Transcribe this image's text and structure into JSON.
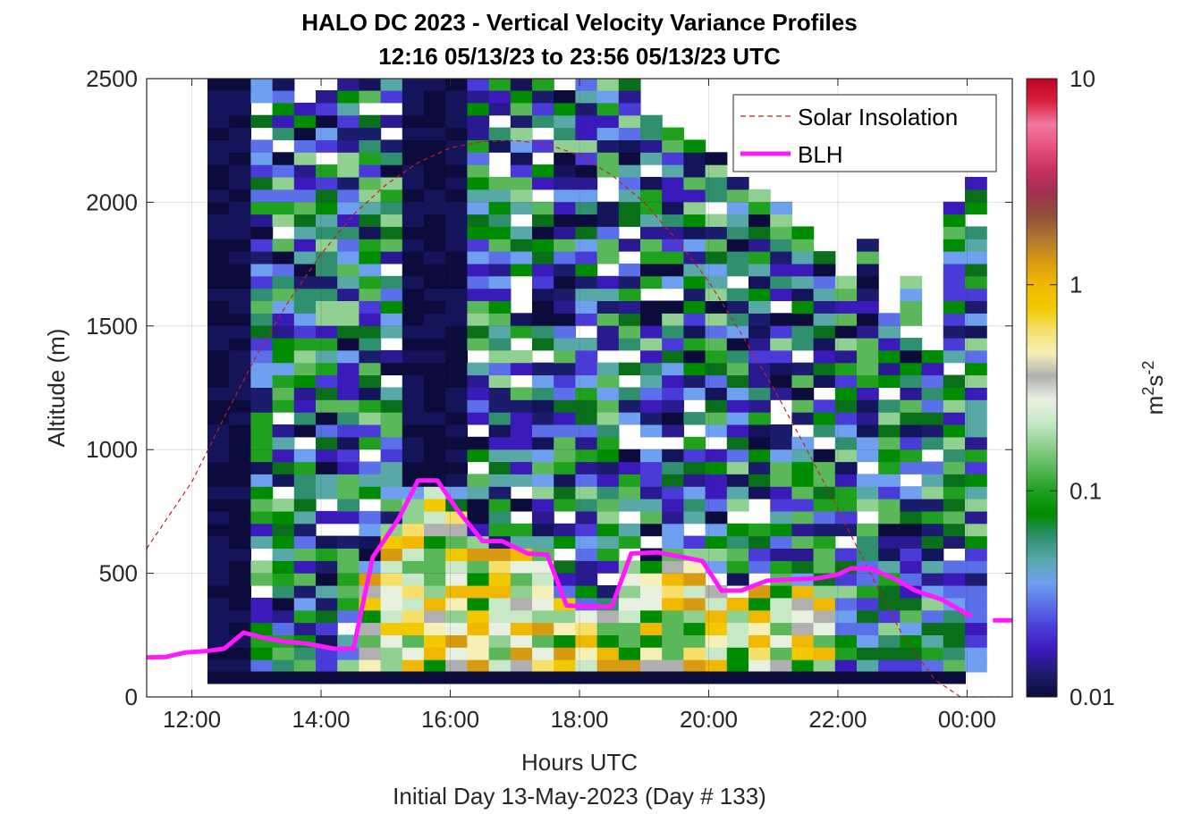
{
  "chart_data": {
    "type": "heatmap",
    "title_line1": "HALO DC 2023 - Vertical Velocity Variance Profiles",
    "title_line2": "12:16 05/13/23 to 23:56 05/13/23  UTC",
    "xlabel": "Hours UTC",
    "xlabel2": "Initial Day 13-May-2023 (Day # 133)",
    "ylabel": "Altitude (m)",
    "xlim": [
      11.3,
      24.7
    ],
    "ylim": [
      0,
      2500
    ],
    "x_ticks": [
      {
        "value": 12,
        "label": "12:00"
      },
      {
        "value": 14,
        "label": "14:00"
      },
      {
        "value": 16,
        "label": "16:00"
      },
      {
        "value": 18,
        "label": "18:00"
      },
      {
        "value": 20,
        "label": "20:00"
      },
      {
        "value": 22,
        "label": "22:00"
      },
      {
        "value": 24,
        "label": "00:00"
      }
    ],
    "y_ticks": [
      {
        "value": 0,
        "label": "0"
      },
      {
        "value": 500,
        "label": "500"
      },
      {
        "value": 1000,
        "label": "1000"
      },
      {
        "value": 1500,
        "label": "1500"
      },
      {
        "value": 2000,
        "label": "2000"
      },
      {
        "value": 2500,
        "label": "2500"
      }
    ],
    "grid": true,
    "legend_position": "top-right",
    "colorbar": {
      "scale": "log",
      "range": [
        0.01,
        10
      ],
      "ticks": [
        {
          "value": 0.01,
          "label": "0.01"
        },
        {
          "value": 0.1,
          "label": "0.1"
        },
        {
          "value": 1,
          "label": "1"
        },
        {
          "value": 10,
          "label": "10"
        }
      ],
      "unit_base": "m",
      "unit_sup1": "2",
      "unit_mid": "s",
      "unit_sup2": "-2",
      "colors": [
        "#0c0c3c",
        "#1c1c6c",
        "#3a1ab8",
        "#4a3bd8",
        "#5a6fe8",
        "#6fa0f0",
        "#58a8a8",
        "#2f8f6f",
        "#008c00",
        "#1fa01f",
        "#5ab85a",
        "#90d090",
        "#c8e8c8",
        "#e8f0e0",
        "#b0b0b0",
        "#f6f0b8",
        "#f6e06a",
        "#f2c800",
        "#f0b800",
        "#d89a10",
        "#b07830",
        "#905038",
        "#a03050",
        "#c83060",
        "#e8507a",
        "#f27aa0",
        "#d82040",
        "#c00020"
      ]
    },
    "series": [
      {
        "name": "Solar Insolation",
        "style": "dashed",
        "color": "#c81e1e",
        "x": [
          11.3,
          12.0,
          12.5,
          13.0,
          13.5,
          14.0,
          14.5,
          15.0,
          15.5,
          16.0,
          16.5,
          17.0,
          17.5,
          18.0,
          18.5,
          19.0,
          19.5,
          20.0,
          20.5,
          21.0,
          21.5,
          22.0,
          22.5,
          23.0,
          23.5,
          23.9,
          24.0,
          24.55
        ],
        "y": [
          600,
          870,
          1130,
          1380,
          1600,
          1790,
          1950,
          2070,
          2160,
          2220,
          2245,
          2250,
          2235,
          2190,
          2110,
          2000,
          1850,
          1680,
          1470,
          1250,
          1010,
          760,
          500,
          250,
          70,
          0,
          0,
          0
        ]
      },
      {
        "name": "BLH",
        "style": "solid",
        "color": "#ff19ff",
        "x": [
          11.3,
          11.6,
          11.9,
          12.2,
          12.5,
          12.8,
          13.1,
          13.4,
          13.8,
          14.2,
          14.5,
          14.8,
          15.2,
          15.5,
          15.8,
          16.1,
          16.5,
          16.8,
          17.2,
          17.5,
          17.8,
          18.1,
          18.5,
          18.8,
          19.2,
          19.5,
          19.9,
          20.2,
          20.5,
          20.9,
          21.3,
          21.7,
          22.0,
          22.2,
          22.5,
          22.9,
          23.2,
          23.6,
          23.9,
          24.05
        ],
        "y": [
          160,
          162,
          180,
          185,
          195,
          260,
          240,
          225,
          215,
          195,
          195,
          565,
          720,
          875,
          875,
          760,
          630,
          630,
          580,
          575,
          370,
          365,
          365,
          580,
          585,
          570,
          550,
          430,
          430,
          470,
          475,
          480,
          495,
          520,
          520,
          475,
          430,
          395,
          350,
          330
        ],
        "segment2_x": [
          24.4,
          24.7
        ],
        "segment2_y": [
          310,
          310
        ]
      }
    ]
  }
}
